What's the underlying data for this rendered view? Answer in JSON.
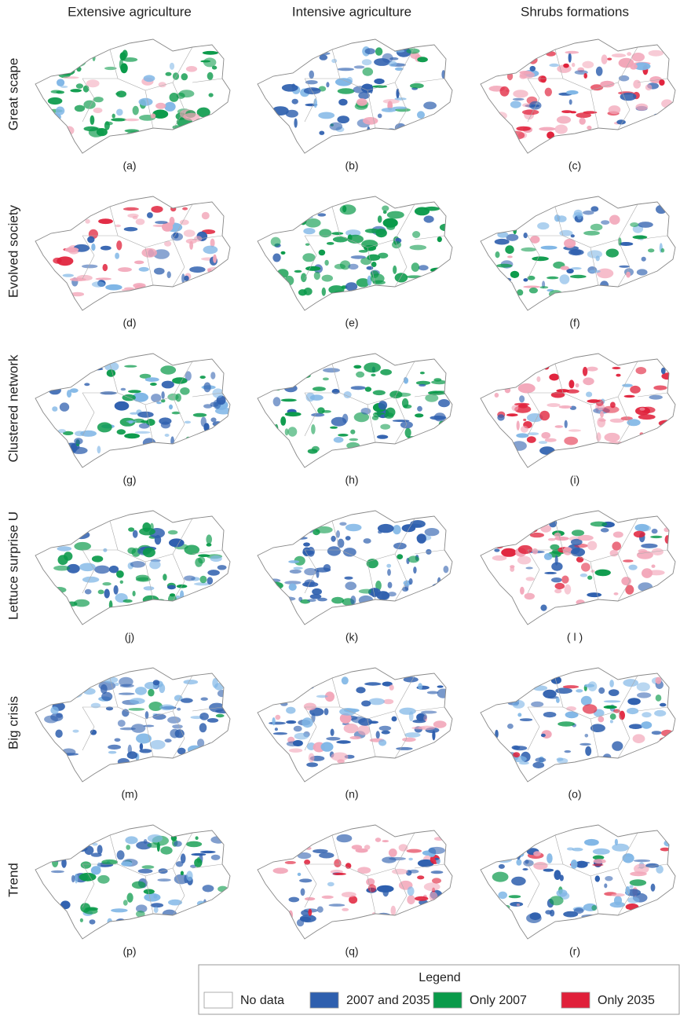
{
  "columns": [
    "Extensive agriculture",
    "Intensive agriculture",
    "Shrubs formations"
  ],
  "rows": [
    "Great scape",
    "Evolved society",
    "Clustered network",
    "Lettuce surprise U",
    "Big crisis",
    "Trend"
  ],
  "panels": [
    [
      "(a)",
      "(b)",
      "(c)"
    ],
    [
      "(d)",
      "(e)",
      "(f)"
    ],
    [
      "(g)",
      "(h)",
      "(i)"
    ],
    [
      "(j)",
      "(k)",
      "( l )"
    ],
    [
      "(m)",
      "(n)",
      "(o)"
    ],
    [
      "(p)",
      "(q)",
      "(r)"
    ]
  ],
  "legend": {
    "title": "Legend",
    "items": [
      {
        "label": "No data",
        "color": "#ffffff"
      },
      {
        "label": "2007 and 2035",
        "color": "#2e5fae"
      },
      {
        "label": "Only 2007",
        "color": "#0a9a4a"
      },
      {
        "label": "Only 2035",
        "color": "#e0203a"
      }
    ]
  }
}
